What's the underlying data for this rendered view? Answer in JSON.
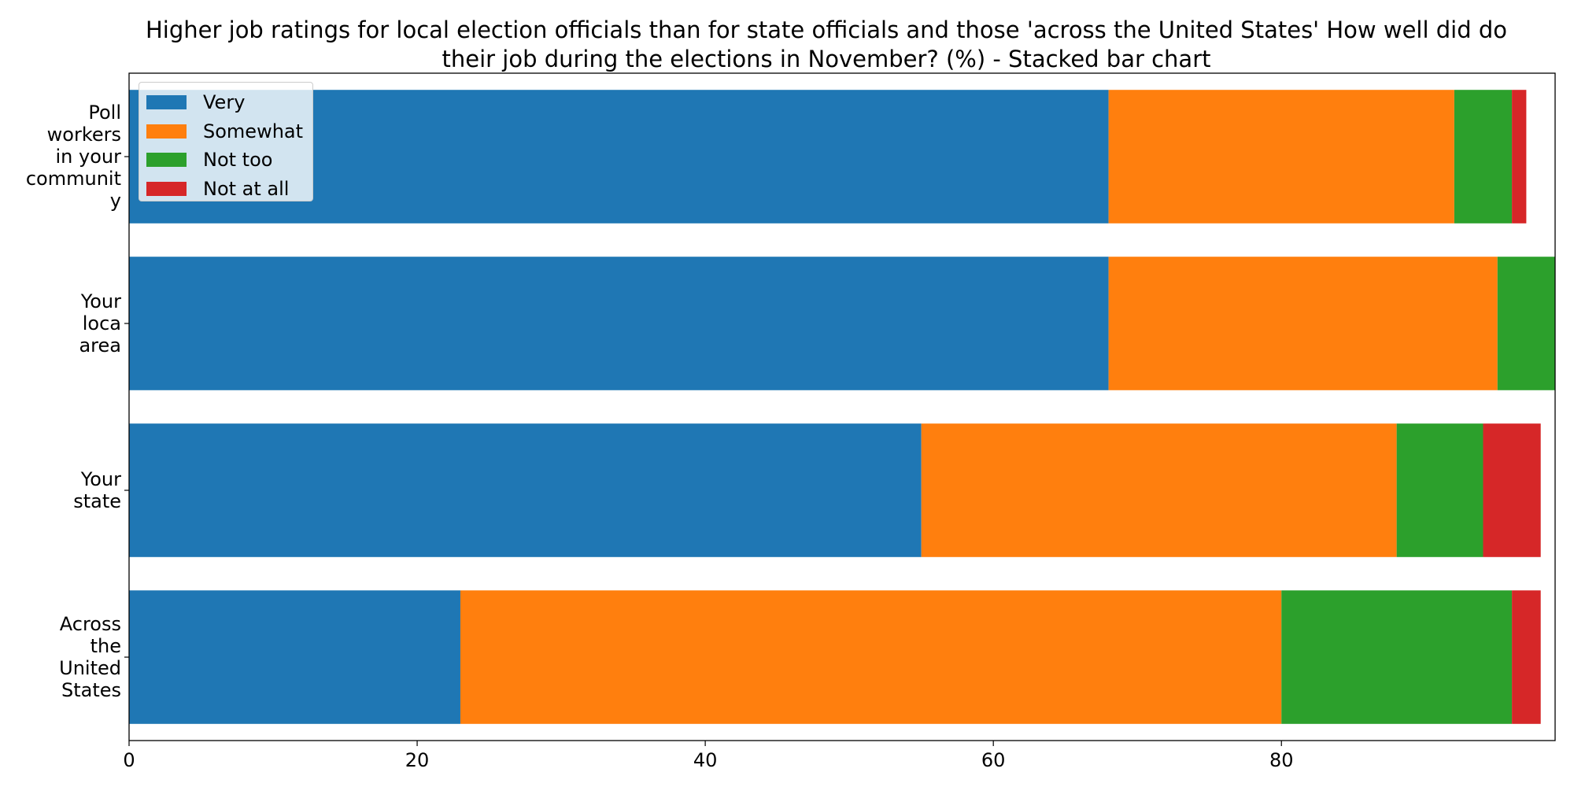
{
  "chart_data": {
    "type": "bar",
    "orientation": "horizontal",
    "stacked": true,
    "title": "Higher job ratings for local election officials than for state officials and those 'across the United States' How well did do their job during the elections in November? (%)  - Stacked bar chart",
    "xlabel": "",
    "ylabel": "",
    "categories": [
      "Poll workers in your community",
      "Your loca area",
      "Your state",
      "Across the United States"
    ],
    "category_label_lines": [
      [
        "Poll",
        "workers",
        "in your",
        "communit",
        "y"
      ],
      [
        "Your",
        "loca",
        "area"
      ],
      [
        "Your",
        "state"
      ],
      [
        "Across",
        "the",
        "United",
        "States"
      ]
    ],
    "series": [
      {
        "name": "Very",
        "color": "#1f77b4",
        "values": [
          68,
          68,
          55,
          23
        ]
      },
      {
        "name": "Somewhat",
        "color": "#ff7f0e",
        "values": [
          24,
          27,
          33,
          57
        ]
      },
      {
        "name": "Not too",
        "color": "#2ca02c",
        "values": [
          4,
          4,
          6,
          16
        ]
      },
      {
        "name": "Not at all",
        "color": "#d62728",
        "values": [
          1,
          0,
          4,
          2
        ]
      }
    ],
    "xlim": [
      0,
      99
    ],
    "xticks": [
      0,
      20,
      40,
      60,
      80
    ],
    "grid": false,
    "legend_position": "top-left"
  }
}
